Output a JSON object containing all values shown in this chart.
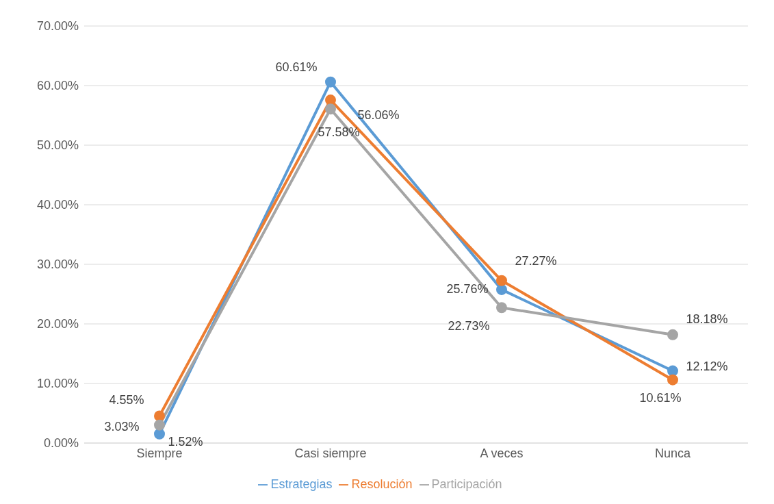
{
  "chart_data": {
    "type": "line",
    "categories": [
      "Siempre",
      "Casi siempre",
      "A veces",
      "Nunca"
    ],
    "series": [
      {
        "name": "Estrategias",
        "color": "#5b9bd5",
        "values": [
          1.52,
          60.61,
          25.76,
          12.12
        ],
        "value_labels": [
          "1.52%",
          "60.61%",
          "25.76%",
          "12.12%"
        ]
      },
      {
        "name": "Resolución",
        "color": "#ed7d31",
        "values": [
          4.55,
          57.58,
          27.27,
          10.61
        ],
        "value_labels": [
          "4.55%",
          "57.58%",
          "27.27%",
          "10.61%"
        ]
      },
      {
        "name": "Participación",
        "color": "#a5a5a5",
        "values": [
          3.03,
          56.06,
          22.73,
          18.18
        ],
        "value_labels": [
          "3.03%",
          "56.06%",
          "22.73%",
          "18.18%"
        ]
      }
    ],
    "ylim": [
      0,
      70
    ],
    "yticks": [
      {
        "value": 0,
        "label": "0.00%"
      },
      {
        "value": 10,
        "label": "10.00%"
      },
      {
        "value": 20,
        "label": "20.00%"
      },
      {
        "value": 30,
        "label": "30.00%"
      },
      {
        "value": 40,
        "label": "40.00%"
      },
      {
        "value": 50,
        "label": "50.00%"
      },
      {
        "value": 60,
        "label": "60.00%"
      },
      {
        "value": 70,
        "label": "70.00%"
      }
    ],
    "grid": "y",
    "legend": "bottom",
    "marker": "circle",
    "line_style": "solid"
  }
}
